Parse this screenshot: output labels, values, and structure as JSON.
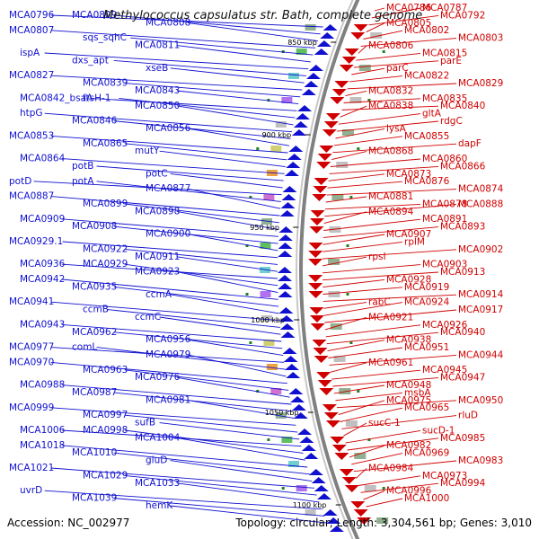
{
  "title": "Methylococcus capsulatus str. Bath, complete genome",
  "footer": {
    "accession": "Accession: NC_002977",
    "topology": "Topology: circular; Length: 3,304,561 bp; Genes: 3,010"
  },
  "colors": {
    "forward": "#1010d0",
    "reverse": "#d00000",
    "backbone": "#808080"
  },
  "kbp_ticks": [
    "850 kbp",
    "900 kbp",
    "950 kbp",
    "1000 kbp",
    "1050 kbp",
    "1100 kbp"
  ],
  "forward_labels": [
    "MCA0796",
    "MCA0809",
    "MCA0808",
    "MCA0807",
    "sqs_sqhC",
    "MCA0811",
    "ispA",
    "dxs_apt",
    "xseB",
    "MCA0827",
    "MCA0839",
    "MCA0843",
    "MCA0842_bsaA",
    "ftsH-1",
    "MCA0850",
    "htpG",
    "MCA0846",
    "MCA0856",
    "MCA0853",
    "MCA0865",
    "mutY",
    "MCA0864",
    "potB",
    "potC",
    "potD",
    "potA",
    "MCA0877",
    "MCA0887",
    "MCA0899",
    "MCA0898",
    "MCA0909",
    "MCA0908",
    "MCA0900",
    "MCA0929.1",
    "MCA0922",
    "MCA0911",
    "MCA0936",
    "MCA0929",
    "MCA0923",
    "MCA0942",
    "MCA0935",
    "ccmA",
    "MCA0941",
    "ccmB",
    "ccmC",
    "MCA0943",
    "MCA0962",
    "MCA0956",
    "MCA0977",
    "comL",
    "MCA0979",
    "MCA0970",
    "MCA0963",
    "MCA0976",
    "MCA0988",
    "MCA0987",
    "MCA0981",
    "MCA0999",
    "MCA0997",
    "sufB",
    "MCA1006",
    "MCA0998",
    "MCA1004",
    "MCA1018",
    "MCA1010",
    "gluD",
    "MCA1021",
    "MCA1029",
    "MCA1033",
    "uvrD",
    "MCA1039",
    "hemK"
  ],
  "reverse_labels": [
    "MCA0786",
    "MCA0787",
    "MCA0792",
    "MCA0805",
    "MCA0802",
    "MCA0803",
    "MCA0806",
    "MCA0815",
    "parE",
    "parC",
    "MCA0822",
    "MCA0829",
    "MCA0832",
    "MCA0835",
    "MCA0840",
    "MCA0838",
    "gltA",
    "rdgC",
    "lysA",
    "MCA0855",
    "dapF",
    "MCA0868",
    "MCA0860",
    "MCA0866",
    "MCA0873",
    "MCA0876",
    "MCA0874",
    "MCA0881",
    "MCA0878",
    "MCA0888",
    "MCA0894",
    "MCA0891",
    "MCA0893",
    "MCA0907",
    "rplM",
    "MCA0902",
    "rpsI",
    "MCA0903",
    "MCA0913",
    "MCA0928",
    "MCA0919",
    "MCA0914",
    "rabC",
    "MCA0924",
    "MCA0917",
    "MCA0921",
    "MCA0926",
    "MCA0940",
    "MCA0938",
    "MCA0951",
    "MCA0944",
    "MCA0961",
    "MCA0945",
    "MCA0947",
    "MCA0948",
    "msbA",
    "MCA0950",
    "MCA0975",
    "MCA0965",
    "rluD",
    "sucC-1",
    "sucD-1",
    "MCA0985",
    "MCA0982",
    "MCA0969",
    "MCA0983",
    "MCA0984",
    "MCA0973",
    "MCA0994",
    "MCA0996",
    "MCA1000"
  ]
}
